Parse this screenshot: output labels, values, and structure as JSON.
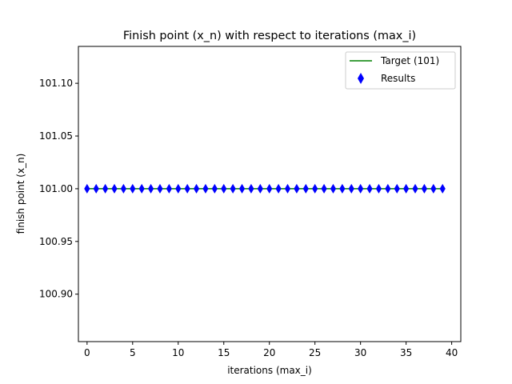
{
  "chart_data": {
    "type": "scatter",
    "title": "Finish point (x_n) with respect to iterations (max_i)",
    "xlabel": "iterations (max_i)",
    "ylabel": "finish point (x_n)",
    "xlim": [
      -0.95,
      41.0
    ],
    "ylim": [
      100.855,
      101.135
    ],
    "xticks": [
      0,
      5,
      10,
      15,
      20,
      25,
      30,
      35,
      40
    ],
    "yticks": [
      100.9,
      100.95,
      101.0,
      101.05,
      101.1
    ],
    "xtick_labels": [
      "0",
      "5",
      "10",
      "15",
      "20",
      "25",
      "30",
      "35",
      "40"
    ],
    "ytick_labels": [
      "100.90",
      "100.95",
      "101.00",
      "101.05",
      "101.10"
    ],
    "grid": false,
    "legend_position": "top-right",
    "series": [
      {
        "name": "Target (101)",
        "kind": "line",
        "color": "#008000",
        "x": [
          0,
          39
        ],
        "y": [
          101,
          101
        ]
      },
      {
        "name": "Results",
        "kind": "scatter",
        "marker": "thin-diamond",
        "color": "#0000ff",
        "x": [
          0,
          1,
          2,
          3,
          4,
          5,
          6,
          7,
          8,
          9,
          10,
          11,
          12,
          13,
          14,
          15,
          16,
          17,
          18,
          19,
          20,
          21,
          22,
          23,
          24,
          25,
          26,
          27,
          28,
          29,
          30,
          31,
          32,
          33,
          34,
          35,
          36,
          37,
          38,
          39
        ],
        "y": [
          101,
          101,
          101,
          101,
          101,
          101,
          101,
          101,
          101,
          101,
          101,
          101,
          101,
          101,
          101,
          101,
          101,
          101,
          101,
          101,
          101,
          101,
          101,
          101,
          101,
          101,
          101,
          101,
          101,
          101,
          101,
          101,
          101,
          101,
          101,
          101,
          101,
          101,
          101,
          101
        ]
      }
    ]
  }
}
